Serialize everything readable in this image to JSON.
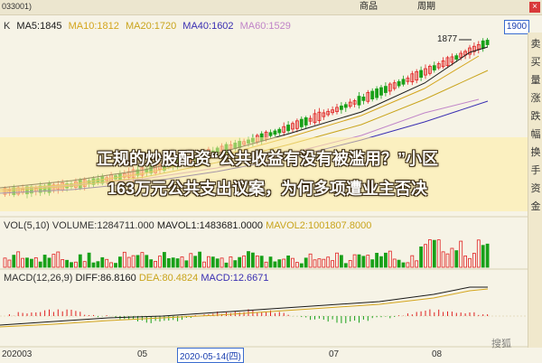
{
  "topbar": {
    "code": "033001)",
    "btn_info": "商品",
    "btn_period": "周期",
    "close": "×"
  },
  "legend": {
    "k": "K",
    "items": [
      {
        "label": "MA5:1845",
        "color": "#1a1a1a"
      },
      {
        "label": "MA10:1812",
        "color": "#d4a51c"
      },
      {
        "label": "MA20:1720",
        "color": "#c9a41c"
      },
      {
        "label": "MA40:1602",
        "color": "#3a2fb2"
      },
      {
        "label": "MA60:1529",
        "color": "#c084c8"
      }
    ]
  },
  "price": {
    "last": "1900",
    "peak": "1877"
  },
  "volume": {
    "label": "VOL(5,10)",
    "volume": "VOLUME:1284711.000",
    "mavol1": "MAVOL1:1483681.0000",
    "mavol2": "MAVOL2:1001807.8000"
  },
  "macd": {
    "label": "MACD(12,26,9)",
    "diff": "DIFF:86.8160",
    "dea": "DEA:80.4824",
    "macd": "MACD:12.6671"
  },
  "xaxis": {
    "labels": [
      "202003",
      "05",
      "07",
      "08"
    ],
    "selected_date": "2020-05-14(四)"
  },
  "sidebar": {
    "items": [
      "卖",
      "买",
      "量",
      "涨",
      "跌",
      "幅",
      "换",
      "手",
      "资",
      "金"
    ]
  },
  "headline": {
    "line1": "正规的炒股配资“公共收益有没有被滥用？”小区",
    "line2": "163万元公共支出议案，为何多项遭业主否决"
  },
  "watermark": "搜狐",
  "colors": {
    "up": "#e02020",
    "down": "#18a018",
    "ma5": "#1a1a1a",
    "ma10": "#d4a51c",
    "ma20": "#c9a41c",
    "ma40": "#3a2fb2",
    "ma60": "#c084c8"
  }
}
